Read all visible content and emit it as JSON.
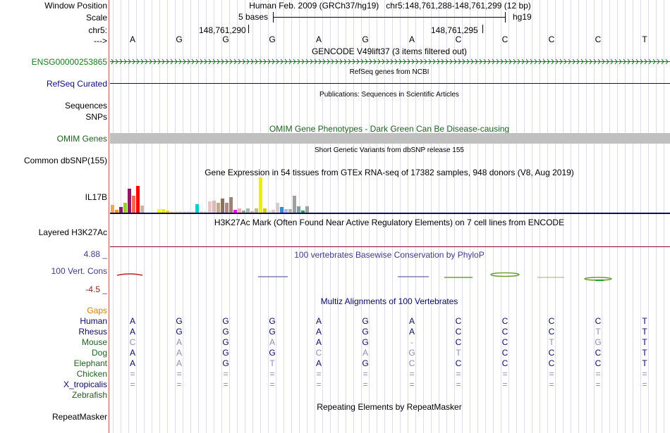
{
  "header": {
    "window_position_label": "Window Position",
    "window_position": "Human Feb. 2009 (GRCh37/hg19)   chr5:148,761,288-148,761,299 (12 bp)",
    "scale_label": "Scale",
    "scale_value": "5 bases",
    "assembly": "hg19",
    "chrom_label": "chr5:",
    "coord_1": "148,761,290",
    "coord_2": "148,761,295",
    "strand_label": "--->"
  },
  "bases": [
    "A",
    "G",
    "G",
    "G",
    "A",
    "G",
    "A",
    "C",
    "C",
    "C",
    "C",
    "T"
  ],
  "tracks": {
    "gencode": {
      "title": "GENCODE V49lift37 (3 items filtered out)",
      "label": "ENSG00000253865",
      "color": "#1a7a1a"
    },
    "refseq": {
      "title": "RefSeq genes from NCBI",
      "label": "RefSeq Curated",
      "color": "#0c0c78"
    },
    "publications": {
      "title": "Publications: Sequences in Scientific Articles",
      "label1": "Sequences",
      "label2": "SNPs"
    },
    "omim": {
      "title": "OMIM Gene Phenotypes - Dark Green Can Be Disease-causing",
      "label": "OMIM Genes",
      "color": "#206020"
    },
    "dbsnp": {
      "title": "Short Genetic Variants from dbSNP release 155",
      "label": "Common dbSNP(155)"
    },
    "gtex": {
      "title": "Gene Expression in 54 tissues from GTEx RNA-seq of 17382 samples, 948 donors (V8, Aug 2019)",
      "label": "IL17B"
    },
    "h3k27ac": {
      "title": "H3K27Ac Mark (Often Found Near Active Regulatory Elements) on 7 cell lines from ENCODE",
      "label": "Layered H3K27Ac"
    },
    "phylop": {
      "title": "100 vertebrates Basewise Conservation by PhyloP",
      "label": "100 Vert. Cons",
      "max": "4.88 _",
      "min": "-4.5 _",
      "color": "#3c3c8c",
      "min_color": "#8c2020"
    },
    "multiz": {
      "title": "Multiz Alignments of 100 Vertebrates",
      "gaps_label": "Gaps",
      "gaps_color": "#d08000"
    },
    "repeatmasker": {
      "title": "Repeating Elements by RepeatMasker",
      "label": "RepeatMasker"
    }
  },
  "species": [
    {
      "name": "Human",
      "color": "#0a0a64",
      "bases": [
        "A",
        "G",
        "G",
        "G",
        "A",
        "G",
        "A",
        "C",
        "C",
        "C",
        "C",
        "T"
      ],
      "dim": [
        false,
        false,
        false,
        false,
        false,
        false,
        false,
        false,
        false,
        false,
        false,
        false
      ]
    },
    {
      "name": "Rhesus",
      "color": "#0a0a64",
      "bases": [
        "A",
        "G",
        "G",
        "G",
        "A",
        "G",
        "A",
        "C",
        "C",
        "C",
        "T",
        "T"
      ],
      "dim": [
        false,
        false,
        false,
        false,
        false,
        false,
        false,
        false,
        false,
        false,
        true,
        false
      ]
    },
    {
      "name": "Mouse",
      "color": "#206020",
      "bases": [
        "C",
        "A",
        "G",
        "A",
        "A",
        "G",
        "-",
        "C",
        "C",
        "T",
        "G",
        "T"
      ],
      "dim": [
        true,
        true,
        false,
        true,
        false,
        false,
        true,
        false,
        false,
        true,
        true,
        false
      ]
    },
    {
      "name": "Dog",
      "color": "#206020",
      "bases": [
        "A",
        "A",
        "G",
        "G",
        "C",
        "A",
        "G",
        "T",
        "C",
        "C",
        "C",
        "T"
      ],
      "dim": [
        false,
        true,
        false,
        false,
        true,
        true,
        true,
        true,
        false,
        false,
        false,
        false
      ]
    },
    {
      "name": "Elephant",
      "color": "#206020",
      "bases": [
        "A",
        "A",
        "G",
        "T",
        "A",
        "G",
        "C",
        "C",
        "C",
        "C",
        "C",
        "T"
      ],
      "dim": [
        false,
        true,
        false,
        true,
        false,
        false,
        true,
        false,
        false,
        false,
        false,
        false
      ]
    },
    {
      "name": "Chicken",
      "color": "#206020",
      "bases": [
        "=",
        "=",
        "=",
        "=",
        "=",
        "=",
        "=",
        "=",
        "=",
        "=",
        "=",
        "="
      ],
      "dim": [
        true,
        true,
        true,
        true,
        true,
        true,
        true,
        true,
        true,
        true,
        true,
        true
      ]
    },
    {
      "name": "X_tropicalis",
      "color": "#0a0a64",
      "bases": [
        "=",
        "=",
        "=",
        "=",
        "=",
        "=",
        "=",
        "=",
        "=",
        "=",
        "=",
        "="
      ],
      "dim": [
        true,
        true,
        true,
        true,
        true,
        true,
        true,
        true,
        true,
        true,
        true,
        true
      ]
    },
    {
      "name": "Zebrafish",
      "color": "#206020",
      "bases": [
        "",
        "",
        "",
        "",
        "",
        "",
        "",
        "",
        "",
        "",
        "",
        ""
      ],
      "dim": [
        false,
        false,
        false,
        false,
        false,
        false,
        false,
        false,
        false,
        false,
        false,
        false
      ]
    }
  ],
  "gtex_bars": [
    {
      "c": "#ffa54f",
      "v": 0.22
    },
    {
      "c": "#ee9a00",
      "v": 0.08
    },
    {
      "c": "#8b1c62",
      "v": 0.15
    },
    {
      "c": "#9acd32",
      "v": 0.28
    },
    {
      "c": "#8b1c62",
      "v": 0.68
    },
    {
      "c": "#ee6a50",
      "v": 0.48
    },
    {
      "c": "#ff0000",
      "v": 0.76
    },
    {
      "c": "#cdb79e",
      "v": 0.2
    },
    {
      "c": "#ffffff",
      "v": 0
    },
    {
      "c": "#ffffff",
      "v": 0
    },
    {
      "c": "#ffffff",
      "v": 0
    },
    {
      "c": "#ffff00",
      "v": 0.1
    },
    {
      "c": "#eeee00",
      "v": 0.1
    },
    {
      "c": "#ffd700",
      "v": 0.05
    },
    {
      "c": "#eeee99",
      "v": 0.04
    },
    {
      "c": "#f0e68c",
      "v": 0.04
    },
    {
      "c": "#e8e8a0",
      "v": 0.04
    },
    {
      "c": "#ddd",
      "v": 0.04
    },
    {
      "c": "#f0e0b0",
      "v": 0.04
    },
    {
      "c": "#ffe4b5",
      "v": 0.04
    },
    {
      "c": "#00cdcd",
      "v": 0.24
    },
    {
      "c": "#ddd",
      "v": 0.04
    },
    {
      "c": "#e0e0c0",
      "v": 0.04
    },
    {
      "c": "#e8c8c8",
      "v": 0.32
    },
    {
      "c": "#d8b8b8",
      "v": 0.34
    },
    {
      "c": "#c8a888",
      "v": 0.28
    },
    {
      "c": "#8b7355",
      "v": 0.4
    },
    {
      "c": "#b08888",
      "v": 0.28
    },
    {
      "c": "#a08070",
      "v": 0.44
    },
    {
      "c": "#ff00ff",
      "v": 0.08
    },
    {
      "c": "#f0b0b0",
      "v": 0.12
    },
    {
      "c": "#a0a0a0",
      "v": 0.06
    },
    {
      "c": "#9ac0a0",
      "v": 0.12
    },
    {
      "c": "#e8a0a0",
      "v": 0.04
    },
    {
      "c": "#c0c080",
      "v": 0.12
    },
    {
      "c": "#eeee00",
      "v": 1.0
    },
    {
      "c": "#cdcd00",
      "v": 0.12
    },
    {
      "c": "#ddd",
      "v": 0.06
    },
    {
      "c": "#e0c8c8",
      "v": 0.08
    },
    {
      "c": "#d0d0d0",
      "v": 0.28
    },
    {
      "c": "#3a8ad0",
      "v": 0.16
    },
    {
      "c": "#a0c0f0",
      "v": 0.1
    },
    {
      "c": "#b0b0b0",
      "v": 0.1
    },
    {
      "c": "#a0a0a0",
      "v": 0.48
    },
    {
      "c": "#7fa0a0",
      "v": 0.18
    },
    {
      "c": "#00aa44",
      "v": 0.06
    },
    {
      "c": "#a0a0a0",
      "v": 0.18
    }
  ]
}
